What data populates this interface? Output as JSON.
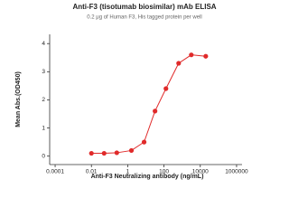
{
  "chart_data": {
    "type": "scatter",
    "title": "Anti-F3 (tisotumab biosimilar) mAb ELISA",
    "subtitle": "0.2 μg of Human F3, His tagged protein per well",
    "x_label": "Anti-F3 Neutralizing antibody (ng/mL)",
    "y_label": "Mean Abs.(OD450)",
    "x": [
      0.01,
      0.05,
      0.25,
      1.6,
      8,
      32,
      128,
      640,
      3200,
      20000
    ],
    "values": [
      0.1,
      0.1,
      0.12,
      0.2,
      0.5,
      1.6,
      2.4,
      3.3,
      3.6,
      3.55
    ],
    "color": "#e02a2a",
    "xlog": true,
    "xlim": [
      5e-05,
      2000000
    ],
    "xticks": [
      0.0001,
      0.01,
      1,
      100,
      10000,
      1000000
    ],
    "ylim": [
      -0.3,
      4.2
    ],
    "yticks": [
      0,
      1,
      2,
      3,
      4
    ]
  }
}
